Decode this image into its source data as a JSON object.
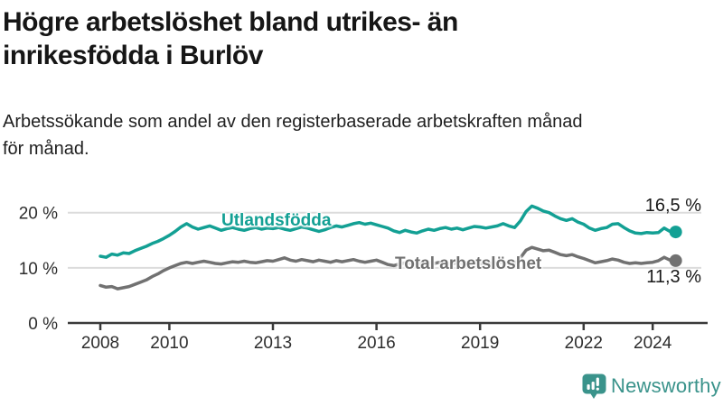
{
  "header": {
    "title": "Högre arbetslöshet bland utrikes- än\ninrikesfödda i Burlöv",
    "subtitle": "Arbetssökande som andel av den registerbaserade arbetskraften månad\nför månad."
  },
  "colors": {
    "accent_teal": "#13a094",
    "series_gray": "#717171",
    "grid": "#dcdcdc",
    "axis": "#3a3a3a",
    "text": "#161616",
    "logo_teal": "#3a938b"
  },
  "chart_data": {
    "type": "line",
    "title": "Högre arbetslöshet bland utrikes- än inrikesfödda i Burlöv",
    "subtitle": "Arbetssökande som andel av den registerbaserade arbetskraften månad för månad.",
    "x_unit": "decimal_year_monthly_series",
    "xlim": [
      2008.0,
      2024.8
    ],
    "ylim": [
      0,
      23
    ],
    "grid": "horizontal",
    "legend_position": "inline-labels",
    "x_ticks": {
      "years": [
        2008,
        2010,
        2013,
        2016,
        2019,
        2022,
        2024
      ],
      "labels": [
        "2008",
        "2010",
        "2013",
        "2016",
        "2019",
        "2022",
        "2024"
      ]
    },
    "y_ticks": [
      {
        "value": 0,
        "label": "0 %"
      },
      {
        "value": 10,
        "label": "10 %"
      },
      {
        "value": 20,
        "label": "20 %"
      }
    ],
    "series": [
      {
        "name": "Utlandsfödda",
        "color": "#13a094",
        "end_label": "16,5 %",
        "end_value": 16.5,
        "x_start": 2008.0,
        "x_step": 0.16667,
        "values": [
          12.1,
          11.9,
          12.5,
          12.3,
          12.7,
          12.6,
          13.1,
          13.5,
          13.9,
          14.4,
          14.8,
          15.3,
          15.9,
          16.6,
          17.4,
          18.0,
          17.4,
          17.0,
          17.3,
          17.6,
          17.2,
          16.8,
          17.1,
          17.3,
          17.0,
          16.8,
          17.1,
          17.3,
          17.0,
          17.2,
          17.1,
          17.3,
          17.0,
          16.8,
          17.1,
          17.4,
          17.2,
          16.9,
          16.6,
          16.9,
          17.3,
          17.6,
          17.4,
          17.7,
          18.0,
          18.2,
          17.9,
          18.1,
          17.8,
          17.5,
          17.2,
          16.7,
          16.4,
          16.8,
          16.5,
          16.3,
          16.7,
          17.0,
          16.8,
          17.1,
          17.3,
          17.0,
          17.2,
          16.9,
          17.2,
          17.5,
          17.4,
          17.2,
          17.4,
          17.6,
          18.0,
          17.6,
          17.3,
          18.5,
          20.2,
          21.2,
          20.8,
          20.3,
          20.0,
          19.4,
          18.9,
          18.6,
          18.9,
          18.3,
          17.9,
          17.2,
          16.8,
          17.1,
          17.3,
          17.9,
          18.0,
          17.3,
          16.7,
          16.3,
          16.2,
          16.4,
          16.3,
          16.4,
          17.2,
          16.6,
          16.5
        ]
      },
      {
        "name": "Total arbetslöshet",
        "color": "#717171",
        "end_label": "11,3 %",
        "end_value": 11.3,
        "x_start": 2008.0,
        "x_step": 0.16667,
        "values": [
          6.8,
          6.5,
          6.6,
          6.2,
          6.4,
          6.6,
          7.0,
          7.4,
          7.8,
          8.4,
          8.9,
          9.5,
          10.0,
          10.4,
          10.8,
          11.0,
          10.8,
          11.0,
          11.2,
          11.0,
          10.8,
          10.7,
          10.9,
          11.1,
          11.0,
          11.2,
          11.0,
          10.9,
          11.1,
          11.3,
          11.2,
          11.5,
          11.8,
          11.4,
          11.2,
          11.5,
          11.3,
          11.1,
          11.4,
          11.2,
          11.0,
          11.3,
          11.1,
          11.3,
          11.5,
          11.2,
          11.0,
          11.2,
          11.4,
          11.0,
          10.6,
          10.4,
          10.7,
          10.9,
          10.8,
          10.6,
          10.9,
          11.0,
          10.8,
          11.0,
          10.9,
          10.7,
          10.9,
          10.8,
          11.0,
          10.9,
          10.8,
          10.6,
          10.8,
          10.9,
          11.0,
          10.8,
          10.7,
          11.8,
          13.2,
          13.7,
          13.4,
          13.1,
          13.2,
          12.8,
          12.4,
          12.2,
          12.4,
          12.0,
          11.7,
          11.3,
          10.9,
          11.1,
          11.3,
          11.6,
          11.4,
          11.0,
          10.8,
          10.9,
          10.8,
          10.9,
          11.0,
          11.3,
          11.9,
          11.4,
          11.3
        ]
      }
    ]
  },
  "branding": {
    "logo_text": "Newsworthy",
    "logo_icon": "newsworthy-speech-bubble-bar-chart-icon"
  }
}
